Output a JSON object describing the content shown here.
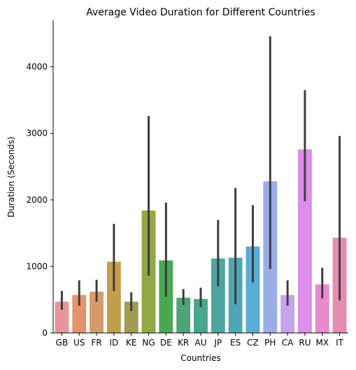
{
  "chart_data": {
    "type": "bar",
    "title": "Average Video Duration for Different Countries",
    "xlabel": "Countries",
    "ylabel": "Duration (Seconds)",
    "ylim": [
      0,
      4700
    ],
    "yticks": [
      0,
      1000,
      2000,
      3000,
      4000
    ],
    "grid": false,
    "legend": "none",
    "categories": [
      "GB",
      "US",
      "FR",
      "ID",
      "KE",
      "NG",
      "DE",
      "KR",
      "AU",
      "JP",
      "ES",
      "CZ",
      "PH",
      "CA",
      "RU",
      "MX",
      "IT"
    ],
    "values": [
      470,
      570,
      620,
      1070,
      470,
      1840,
      1090,
      530,
      510,
      1120,
      1130,
      1300,
      2280,
      570,
      2760,
      730,
      1430
    ],
    "ci_low": [
      350,
      410,
      470,
      630,
      330,
      860,
      540,
      420,
      390,
      700,
      430,
      760,
      960,
      410,
      1980,
      520,
      490
    ],
    "ci_high": [
      630,
      790,
      800,
      1640,
      610,
      3260,
      1960,
      660,
      680,
      1700,
      2180,
      1920,
      4460,
      790,
      3650,
      980,
      2960
    ],
    "colors": [
      "#e8949a",
      "#e3936b",
      "#d59b6b",
      "#c29d4c",
      "#a19b53",
      "#92a844",
      "#4aa853",
      "#4ea477",
      "#4aa58d",
      "#4ea59f",
      "#4ea6b4",
      "#5aabd6",
      "#99ade8",
      "#c5a4ee",
      "#dc8ee8",
      "#e68ccd",
      "#e58cb2"
    ],
    "error_color": "#3d3d3d"
  }
}
